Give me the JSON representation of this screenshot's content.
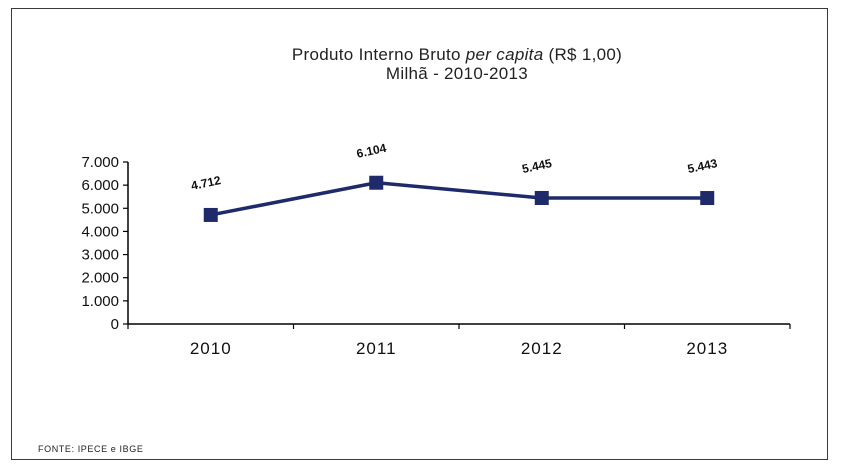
{
  "title": {
    "line1_main": "Produto Interno Bruto",
    "line1_italic": "per capita",
    "line1_suffix": "(R$ 1,00)",
    "line2": "Milhã - 2010-2013"
  },
  "source": "FONTE: IPECE e IBGE",
  "chart_data": {
    "type": "line",
    "title": "Produto Interno Bruto per capita (R$ 1,00) Milhã - 2010-2013",
    "categories": [
      "2010",
      "2011",
      "2012",
      "2013"
    ],
    "series": [
      {
        "values": [
          4712,
          6104,
          5445,
          5443
        ],
        "data_labels": [
          "4.712",
          "6.104",
          "5.445",
          "5.443"
        ],
        "color": "#1f2a6b",
        "marker": "square"
      }
    ],
    "y_ticks": [
      0,
      1000,
      2000,
      3000,
      4000,
      5000,
      6000,
      7000
    ],
    "y_tick_labels": [
      "0",
      "1.000",
      "2.000",
      "3.000",
      "4.000",
      "5.000",
      "6.000",
      "7.000"
    ],
    "ylim": [
      0,
      7000
    ],
    "grid": false,
    "legend": "none",
    "xlabel": "",
    "ylabel": ""
  }
}
